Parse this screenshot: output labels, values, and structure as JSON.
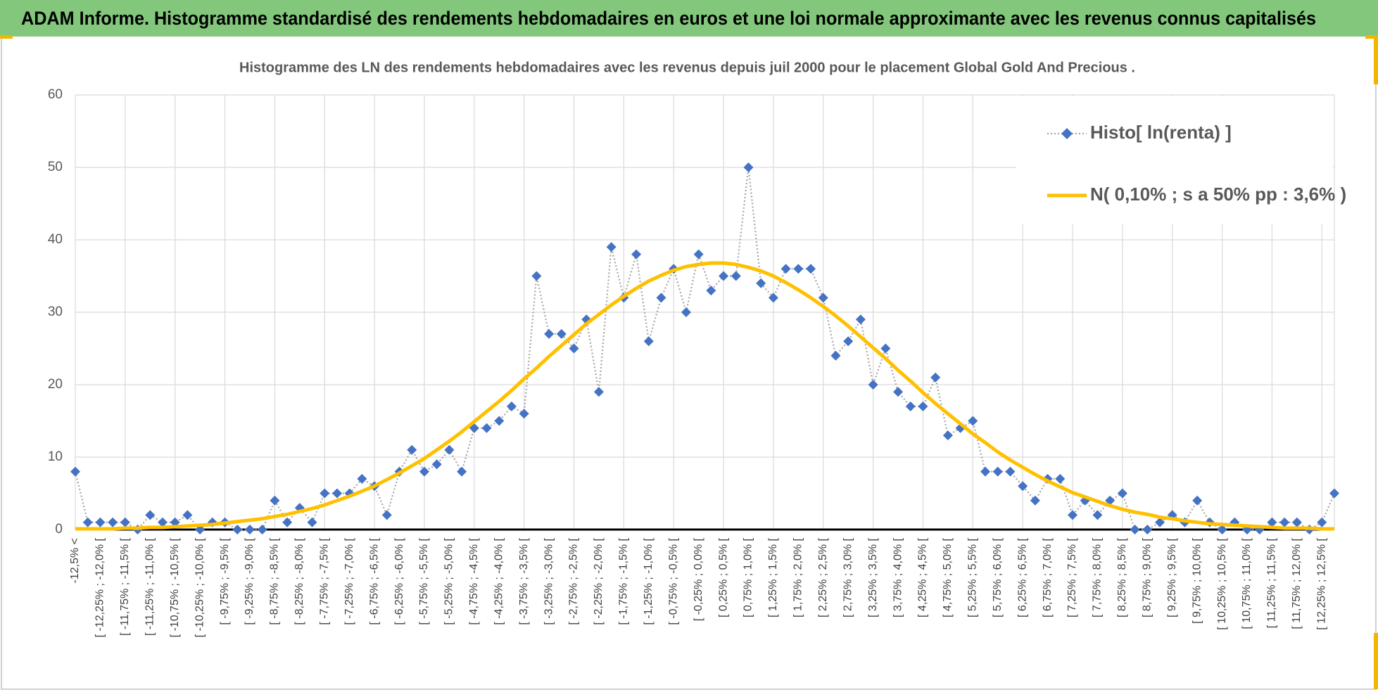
{
  "chart_data": {
    "type": "line",
    "title": "ADAM Informe. Histogramme standardisé des rendements hebdomadaires en euros et une loi normale approximante avec les revenus connus capitalisés",
    "subtitle": "Histogramme  des LN des rendements hebdomadaires avec les revenus depuis juil 2000 pour le placement Global Gold And Precious .",
    "categories": [
      "-12,5% <",
      null,
      "[ -12,25% ; -12,0% [",
      null,
      "[ -11,75% ; -11,5% [",
      null,
      "[ -11,25% ; -11,0% [",
      null,
      "[ -10,75% ; -10,5% [",
      null,
      "[ -10,25% ; -10,0% [",
      null,
      "[ -9,75% ; -9,5% [",
      null,
      "[ -9,25% ; -9,0% [",
      null,
      "[ -8,75% ; -8,5% [",
      null,
      "[ -8,25% ; -8,0% [",
      null,
      "[ -7,75% ; -7,5% [",
      null,
      "[ -7,25% ; -7,0% [",
      null,
      "[ -6,75% ; -6,5% [",
      null,
      "[ -6,25% ; -6,0% [",
      null,
      "[ -5,75% ; -5,5% [",
      null,
      "[ -5,25% ; -5,0% [",
      null,
      "[ -4,75% ; -4,5% [",
      null,
      "[ -4,25% ; -4,0% [",
      null,
      "[ -3,75% ; -3,5% [",
      null,
      "[ -3,25% ; -3,0% [",
      null,
      "[ -2,75% ; -2,5% [",
      null,
      "[ -2,25% ; -2,0% [",
      null,
      "[ -1,75% ; -1,5% [",
      null,
      "[ -1,25% ; -1,0% [",
      null,
      "[ -0,75% ; -0,5% [",
      null,
      "[ -0,25% ; 0,0% [",
      null,
      "[ 0,25% ; 0,5% [",
      null,
      "[ 0,75% ; 1,0% [",
      null,
      "[ 1,25% ; 1,5% [",
      null,
      "[ 1,75% ; 2,0% [",
      null,
      "[ 2,25% ; 2,5% [",
      null,
      "[ 2,75% ; 3,0% [",
      null,
      "[ 3,25% ; 3,5% [",
      null,
      "[ 3,75% ; 4,0% [",
      null,
      "[ 4,25% ; 4,5% [",
      null,
      "[ 4,75% ; 5,0% [",
      null,
      "[ 5,25% ; 5,5% [",
      null,
      "[ 5,75% ; 6,0% [",
      null,
      "[ 6,25% ; 6,5% [",
      null,
      "[ 6,75% ; 7,0% [",
      null,
      "[ 7,25% ; 7,5% [",
      null,
      "[ 7,75% ; 8,0% [",
      null,
      "[ 8,25% ; 8,5% [",
      null,
      "[ 8,75% ; 9,0% [",
      null,
      "[ 9,25% ; 9,5% [",
      null,
      "[ 9,75% ; 10,0% [",
      null,
      "[ 10,25% ; 10,5% [",
      null,
      "[ 10,75% ; 11,0% [",
      null,
      "[ 11,25% ; 11,5% [",
      null,
      "[ 11,75% ; 12,0% [",
      null,
      "[ 12,25% ; 12,5% [",
      null
    ],
    "series": [
      {
        "name": "Histo[ ln(renta) ]",
        "color": "#4472c4",
        "line_color": "#a6a6a6",
        "marker": "diamond",
        "values": [
          8,
          1,
          1,
          1,
          1,
          0,
          2,
          1,
          1,
          2,
          0,
          1,
          1,
          0,
          0,
          0,
          4,
          1,
          3,
          1,
          5,
          5,
          5,
          7,
          6,
          2,
          8,
          11,
          8,
          9,
          11,
          8,
          14,
          14,
          15,
          17,
          16,
          35,
          27,
          27,
          25,
          29,
          19,
          39,
          32,
          38,
          26,
          32,
          36,
          30,
          38,
          33,
          35,
          35,
          50,
          34,
          32,
          36,
          36,
          36,
          32,
          24,
          26,
          29,
          20,
          25,
          19,
          17,
          17,
          21,
          13,
          14,
          15,
          8,
          8,
          8,
          6,
          4,
          7,
          7,
          2,
          4,
          2,
          4,
          5,
          0,
          0,
          1,
          2,
          1,
          4,
          1,
          0,
          1,
          0,
          0,
          1,
          1,
          1,
          0,
          1,
          5
        ]
      },
      {
        "name": "N( 0,10% ; s a 50% pp : 3,6% )",
        "color": "#ffc000",
        "values": [
          0.1,
          0.1,
          0.1,
          0.1,
          0.2,
          0.2,
          0.3,
          0.3,
          0.4,
          0.5,
          0.6,
          0.7,
          0.9,
          1.1,
          1.3,
          1.5,
          1.8,
          2.1,
          2.5,
          2.9,
          3.4,
          4.0,
          4.6,
          5.3,
          6.0,
          6.9,
          7.8,
          8.8,
          9.8,
          11.0,
          12.2,
          13.5,
          14.9,
          16.3,
          17.7,
          19.2,
          20.8,
          22.3,
          23.9,
          25.4,
          26.9,
          28.4,
          29.7,
          31.0,
          32.2,
          33.3,
          34.3,
          35.1,
          35.8,
          36.3,
          36.6,
          36.8,
          36.8,
          36.6,
          36.2,
          35.7,
          35.0,
          34.1,
          33.1,
          32.0,
          30.8,
          29.5,
          28.1,
          26.6,
          25.1,
          23.6,
          22.0,
          20.5,
          18.9,
          17.4,
          16.0,
          14.6,
          13.2,
          12.0,
          10.7,
          9.6,
          8.6,
          7.6,
          6.7,
          5.9,
          5.1,
          4.5,
          3.9,
          3.3,
          2.8,
          2.4,
          2.1,
          1.7,
          1.5,
          1.2,
          1.0,
          0.8,
          0.7,
          0.6,
          0.5,
          0.4,
          0.3,
          0.2,
          0.2,
          0.2,
          0.1,
          0.1
        ]
      }
    ],
    "ylim": [
      0,
      60
    ],
    "yticks": [
      0,
      10,
      20,
      30,
      40,
      50,
      60
    ],
    "grid": true,
    "legend": "upper right"
  }
}
